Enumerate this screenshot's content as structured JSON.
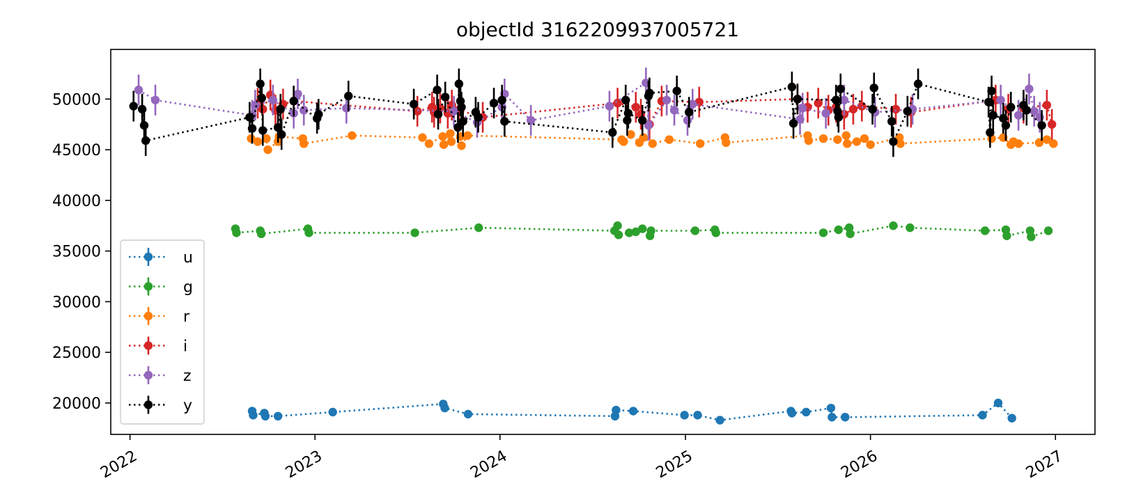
{
  "chart_data": {
    "type": "scatter",
    "title": "objectId 3162209937005721",
    "xlabel": "",
    "ylabel": "",
    "x_axis": {
      "type": "date",
      "range": [
        "2021-11-24",
        "2027-03-20"
      ],
      "ticks": [
        "2022-01-01",
        "2023-01-01",
        "2024-01-01",
        "2025-01-01",
        "2026-01-01",
        "2027-01-01"
      ],
      "tick_labels": [
        "2022",
        "2023",
        "2024",
        "2025",
        "2026",
        "2027"
      ]
    },
    "y_axis": {
      "range": [
        16900,
        54900
      ],
      "ticks": [
        20000,
        25000,
        30000,
        35000,
        40000,
        45000,
        50000
      ],
      "tick_labels": [
        "20000",
        "25000",
        "30000",
        "35000",
        "40000",
        "45000",
        "50000"
      ]
    },
    "grid": false,
    "legend": {
      "placement": "lower-left"
    },
    "series": [
      {
        "name": "u",
        "color": "#1f77b4",
        "points": [
          [
            "2022-08-30",
            19200
          ],
          [
            "2022-09-01",
            18800
          ],
          [
            "2022-09-23",
            19000
          ],
          [
            "2022-09-25",
            18700
          ],
          [
            "2022-10-20",
            18700
          ],
          [
            "2023-02-05",
            19100
          ],
          [
            "2023-09-11",
            19900
          ],
          [
            "2023-09-14",
            19500
          ],
          [
            "2023-10-30",
            18900
          ],
          [
            "2024-08-15",
            18700
          ],
          [
            "2024-08-17",
            19300
          ],
          [
            "2024-09-20",
            19200
          ],
          [
            "2024-12-30",
            18800
          ],
          [
            "2025-01-25",
            18800
          ],
          [
            "2025-03-10",
            18300
          ],
          [
            "2025-07-28",
            19200
          ],
          [
            "2025-07-30",
            19000
          ],
          [
            "2025-08-27",
            19100
          ],
          [
            "2025-10-15",
            19500
          ],
          [
            "2025-10-17",
            18600
          ],
          [
            "2025-11-12",
            18600
          ],
          [
            "2026-08-10",
            18800
          ],
          [
            "2026-09-10",
            20000
          ],
          [
            "2026-10-07",
            18500
          ]
        ]
      },
      {
        "name": "g",
        "color": "#2ca02c",
        "points": [
          [
            "2022-07-28",
            37200
          ],
          [
            "2022-07-30",
            36800
          ],
          [
            "2022-09-15",
            37000
          ],
          [
            "2022-09-17",
            36700
          ],
          [
            "2022-12-18",
            37200
          ],
          [
            "2022-12-20",
            36800
          ],
          [
            "2023-07-17",
            36800
          ],
          [
            "2023-11-20",
            37300
          ],
          [
            "2024-08-14",
            37000
          ],
          [
            "2024-08-20",
            37500
          ],
          [
            "2024-08-22",
            36600
          ],
          [
            "2024-09-12",
            36800
          ],
          [
            "2024-09-25",
            36900
          ],
          [
            "2024-10-08",
            37200
          ],
          [
            "2024-10-23",
            36500
          ],
          [
            "2024-10-25",
            37000
          ],
          [
            "2025-01-20",
            37000
          ],
          [
            "2025-02-28",
            37100
          ],
          [
            "2025-03-02",
            36800
          ],
          [
            "2025-09-30",
            36800
          ],
          [
            "2025-10-30",
            37100
          ],
          [
            "2025-11-20",
            37300
          ],
          [
            "2025-11-22",
            36700
          ],
          [
            "2026-02-15",
            37500
          ],
          [
            "2026-03-20",
            37300
          ],
          [
            "2026-08-15",
            37000
          ],
          [
            "2026-09-25",
            37100
          ],
          [
            "2026-09-27",
            36500
          ],
          [
            "2026-11-12",
            37000
          ],
          [
            "2026-11-14",
            36400
          ],
          [
            "2026-12-18",
            37000
          ]
        ]
      },
      {
        "name": "r",
        "color": "#ff7f0e",
        "points": [
          [
            "2022-08-28",
            46100
          ],
          [
            "2022-09-10",
            45800
          ],
          [
            "2022-09-27",
            46100
          ],
          [
            "2022-09-30",
            45000
          ],
          [
            "2022-10-20",
            45800
          ],
          [
            "2022-10-22",
            46300
          ],
          [
            "2022-12-08",
            46100
          ],
          [
            "2022-12-10",
            45600
          ],
          [
            "2023-03-15",
            46400
          ],
          [
            "2023-08-01",
            46200
          ],
          [
            "2023-08-14",
            45600
          ],
          [
            "2023-09-10",
            46300
          ],
          [
            "2023-09-12",
            45500
          ],
          [
            "2023-09-25",
            46600
          ],
          [
            "2023-09-27",
            45800
          ],
          [
            "2023-10-15",
            46300
          ],
          [
            "2023-10-17",
            45400
          ],
          [
            "2023-10-29",
            46400
          ],
          [
            "2024-08-28",
            46000
          ],
          [
            "2024-09-01",
            45800
          ],
          [
            "2024-09-15",
            46500
          ],
          [
            "2024-10-02",
            45700
          ],
          [
            "2024-10-10",
            46200
          ],
          [
            "2024-10-28",
            45600
          ],
          [
            "2024-11-30",
            46000
          ],
          [
            "2025-01-30",
            45600
          ],
          [
            "2025-03-20",
            46200
          ],
          [
            "2025-03-22",
            45700
          ],
          [
            "2025-08-30",
            46400
          ],
          [
            "2025-09-01",
            45900
          ],
          [
            "2025-09-30",
            46100
          ],
          [
            "2025-10-28",
            46000
          ],
          [
            "2025-11-14",
            46400
          ],
          [
            "2025-11-16",
            45600
          ],
          [
            "2025-12-05",
            45800
          ],
          [
            "2025-12-20",
            46100
          ],
          [
            "2026-01-01",
            45500
          ],
          [
            "2026-02-27",
            46200
          ],
          [
            "2026-03-01",
            45600
          ],
          [
            "2026-08-28",
            46100
          ],
          [
            "2026-09-20",
            46200
          ],
          [
            "2026-10-05",
            45500
          ],
          [
            "2026-10-10",
            45800
          ],
          [
            "2026-10-20",
            45600
          ],
          [
            "2026-11-30",
            45700
          ],
          [
            "2026-12-15",
            46000
          ],
          [
            "2026-12-28",
            45600
          ]
        ]
      },
      {
        "name": "i",
        "color": "#d62728",
        "points": [
          [
            "2022-09-10",
            49600
          ],
          [
            "2022-09-20",
            49000
          ],
          [
            "2022-10-05",
            50400
          ],
          [
            "2022-10-15",
            48900
          ],
          [
            "2022-10-30",
            49500
          ],
          [
            "2022-11-20",
            49800
          ],
          [
            "2023-07-22",
            48800
          ],
          [
            "2023-08-20",
            49200
          ],
          [
            "2023-08-24",
            48700
          ],
          [
            "2023-09-05",
            49100
          ],
          [
            "2023-09-20",
            48600
          ],
          [
            "2023-09-28",
            49400
          ],
          [
            "2023-10-12",
            48900
          ],
          [
            "2023-11-28",
            48200
          ],
          [
            "2024-08-20",
            49600
          ],
          [
            "2024-09-25",
            49200
          ],
          [
            "2024-10-05",
            48500
          ],
          [
            "2024-10-22",
            47500
          ],
          [
            "2024-11-15",
            49800
          ],
          [
            "2025-01-28",
            49700
          ],
          [
            "2025-08-10",
            50000
          ],
          [
            "2025-08-30",
            49200
          ],
          [
            "2025-09-20",
            49600
          ],
          [
            "2025-10-10",
            48900
          ],
          [
            "2025-10-25",
            49200
          ],
          [
            "2025-11-10",
            48500
          ],
          [
            "2025-11-28",
            49000
          ],
          [
            "2025-12-15",
            49300
          ],
          [
            "2026-02-20",
            49000
          ],
          [
            "2026-03-22",
            48700
          ],
          [
            "2026-09-05",
            49900
          ],
          [
            "2026-09-30",
            49000
          ],
          [
            "2026-10-30",
            49100
          ],
          [
            "2026-12-15",
            49400
          ],
          [
            "2026-12-25",
            47500
          ]
        ]
      },
      {
        "name": "z",
        "color": "#9467bd",
        "points": [
          [
            "2022-01-18",
            50900
          ],
          [
            "2022-02-20",
            49900
          ],
          [
            "2022-08-30",
            48400
          ],
          [
            "2022-09-05",
            49400
          ],
          [
            "2022-10-10",
            49900
          ],
          [
            "2022-11-20",
            48600
          ],
          [
            "2022-11-28",
            50500
          ],
          [
            "2022-12-10",
            48900
          ],
          [
            "2023-03-04",
            49100
          ],
          [
            "2023-10-02",
            48800
          ],
          [
            "2023-11-17",
            47700
          ],
          [
            "2024-01-05",
            49200
          ],
          [
            "2024-01-10",
            50500
          ],
          [
            "2024-03-02",
            47900
          ],
          [
            "2024-08-04",
            49300
          ],
          [
            "2024-10-15",
            51600
          ],
          [
            "2024-10-20",
            47400
          ],
          [
            "2024-11-25",
            49900
          ],
          [
            "2024-12-10",
            48900
          ],
          [
            "2025-01-05",
            47900
          ],
          [
            "2025-01-15",
            49500
          ],
          [
            "2025-08-15",
            48000
          ],
          [
            "2025-08-20",
            49100
          ],
          [
            "2025-10-05",
            48600
          ],
          [
            "2025-11-10",
            49900
          ],
          [
            "2026-01-10",
            48700
          ],
          [
            "2026-03-25",
            49000
          ],
          [
            "2026-09-15",
            49900
          ],
          [
            "2026-10-20",
            48400
          ],
          [
            "2026-11-10",
            51000
          ],
          [
            "2026-11-20",
            48800
          ],
          [
            "2026-12-01",
            48200
          ]
        ]
      },
      {
        "name": "y",
        "color": "#000000",
        "points": [
          [
            "2022-01-08",
            49300
          ],
          [
            "2022-01-25",
            49000
          ],
          [
            "2022-01-29",
            47400
          ],
          [
            "2022-02-01",
            45900
          ],
          [
            "2022-08-25",
            48200
          ],
          [
            "2022-08-30",
            47100
          ],
          [
            "2022-09-15",
            51500
          ],
          [
            "2022-09-18",
            50100
          ],
          [
            "2022-09-20",
            46900
          ],
          [
            "2022-10-20",
            47200
          ],
          [
            "2022-10-25",
            49000
          ],
          [
            "2022-10-27",
            46500
          ],
          [
            "2022-11-20",
            49800
          ],
          [
            "2023-01-05",
            48100
          ],
          [
            "2023-01-08",
            48500
          ],
          [
            "2023-03-08",
            50300
          ],
          [
            "2023-07-15",
            49500
          ],
          [
            "2023-08-30",
            50900
          ],
          [
            "2023-09-01",
            48500
          ],
          [
            "2023-09-15",
            50200
          ],
          [
            "2023-10-10",
            47200
          ],
          [
            "2023-10-12",
            51500
          ],
          [
            "2023-10-15",
            49800
          ],
          [
            "2023-10-17",
            49200
          ],
          [
            "2023-10-20",
            47800
          ],
          [
            "2023-11-14",
            48700
          ],
          [
            "2023-11-19",
            48200
          ],
          [
            "2023-12-20",
            49600
          ],
          [
            "2024-01-05",
            49900
          ],
          [
            "2024-01-10",
            47800
          ],
          [
            "2024-08-10",
            46700
          ],
          [
            "2024-09-05",
            49900
          ],
          [
            "2024-09-08",
            47900
          ],
          [
            "2024-09-10",
            48600
          ],
          [
            "2024-10-08",
            47900
          ],
          [
            "2024-10-20",
            50300
          ],
          [
            "2024-10-22",
            50600
          ],
          [
            "2024-12-15",
            50800
          ],
          [
            "2025-01-08",
            48700
          ],
          [
            "2025-07-30",
            51200
          ],
          [
            "2025-08-02",
            47600
          ],
          [
            "2025-08-10",
            50000
          ],
          [
            "2025-10-25",
            49900
          ],
          [
            "2025-10-28",
            48800
          ],
          [
            "2025-10-30",
            48200
          ],
          [
            "2025-11-03",
            51000
          ],
          [
            "2026-01-05",
            49000
          ],
          [
            "2026-01-08",
            51100
          ],
          [
            "2026-02-12",
            47800
          ],
          [
            "2026-02-15",
            45800
          ],
          [
            "2026-03-15",
            48800
          ],
          [
            "2026-04-05",
            51500
          ],
          [
            "2026-08-22",
            49700
          ],
          [
            "2026-08-25",
            46700
          ],
          [
            "2026-08-28",
            50800
          ],
          [
            "2026-08-31",
            48400
          ],
          [
            "2026-09-20",
            48100
          ],
          [
            "2026-09-25",
            47400
          ],
          [
            "2026-10-05",
            49200
          ],
          [
            "2026-10-30",
            49400
          ],
          [
            "2026-11-05",
            48900
          ],
          [
            "2026-12-05",
            47400
          ]
        ]
      }
    ]
  }
}
